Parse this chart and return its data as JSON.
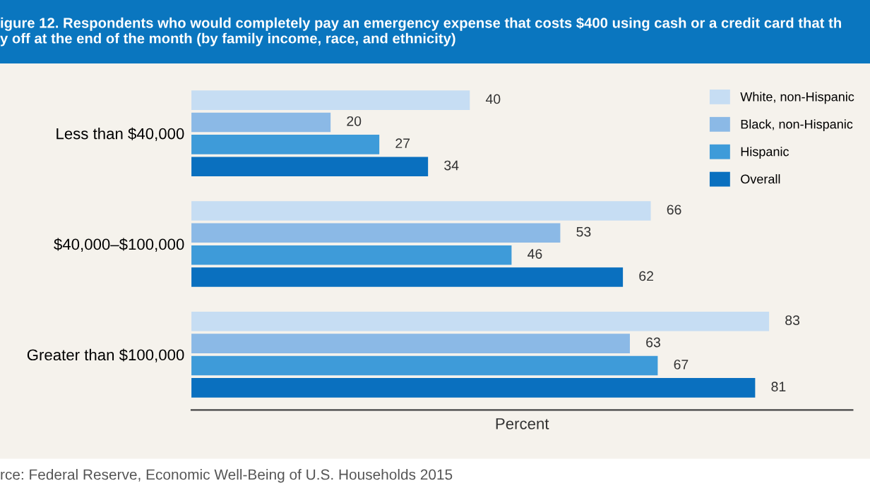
{
  "chart_data": {
    "type": "bar",
    "orientation": "horizontal",
    "title": "igure 12. Respondents who would completely pay an emergency expense that costs $400 using cash or a credit card that th\ny off at the end of the month (by family income, race, and ethnicity)",
    "xlabel": "Percent",
    "categories": [
      "Less than $40,000",
      "$40,000–$100,000",
      "Greater than $100,000"
    ],
    "series": [
      {
        "name": "White, non-Hispanic",
        "color": "#c6ddf3",
        "values": [
          40,
          66,
          83
        ]
      },
      {
        "name": "Black, non-Hispanic",
        "color": "#8bb9e6",
        "values": [
          20,
          53,
          63
        ]
      },
      {
        "name": "Hispanic",
        "color": "#3e9bd9",
        "values": [
          27,
          46,
          67
        ]
      },
      {
        "name": "Overall",
        "color": "#0a70bf",
        "values": [
          34,
          62,
          81
        ]
      }
    ],
    "xlim": [
      0,
      95
    ],
    "tick_labels": "y",
    "data_labels": true,
    "legend": "top right",
    "grid": false,
    "annotations": [
      "rce: Federal Reserve, Economic Well-Being of U.S. Households 2015"
    ]
  }
}
